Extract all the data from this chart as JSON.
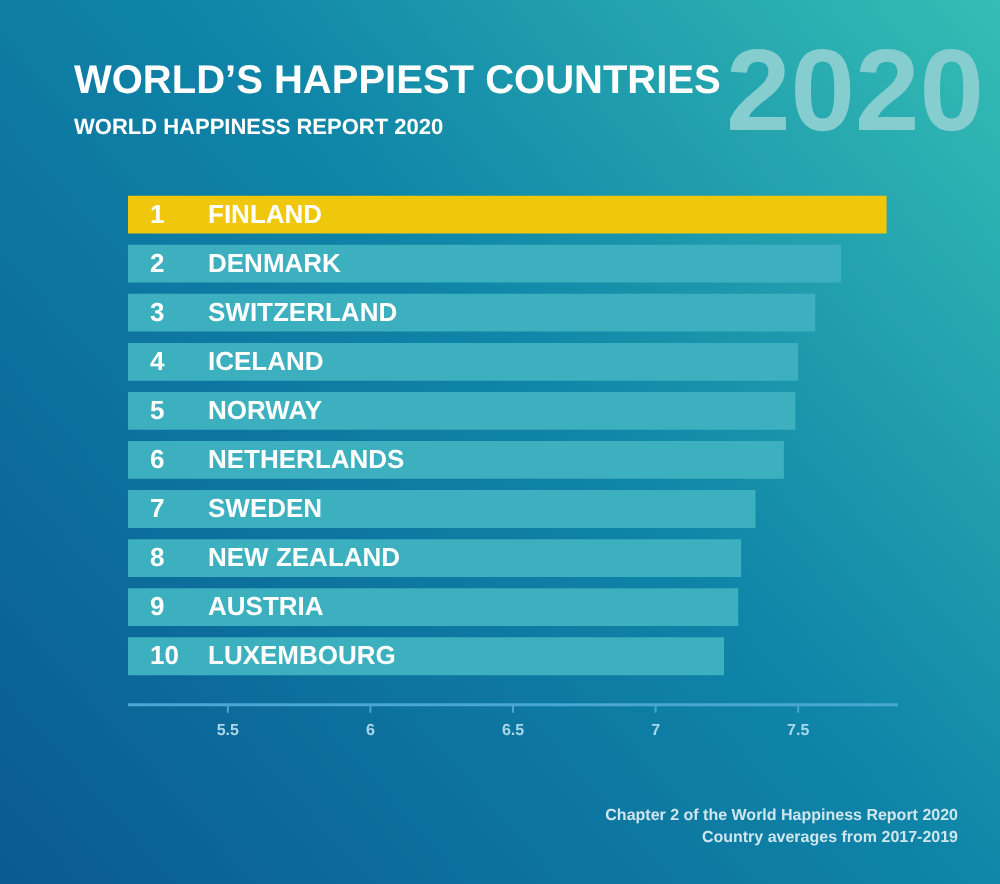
{
  "chart_data": {
    "type": "bar",
    "orientation": "horizontal",
    "title": "WORLD’S HAPPIEST COUNTRIES",
    "subtitle": "WORLD HAPPINESS REPORT 2020",
    "categories": [
      "FINLAND",
      "DENMARK",
      "SWITZERLAND",
      "ICELAND",
      "NORWAY",
      "NETHERLANDS",
      "SWEDEN",
      "NEW ZEALAND",
      "AUSTRIA",
      "LUXEMBOURG"
    ],
    "values": [
      7.81,
      7.65,
      7.56,
      7.5,
      7.49,
      7.45,
      7.35,
      7.3,
      7.29,
      7.24
    ],
    "colors": [
      "#efc80e",
      "#3cb0be",
      "#3cb0be",
      "#3cb0be",
      "#3cb0be",
      "#3cb0be",
      "#3cb0be",
      "#3cb0be",
      "#3cb0be",
      "#3cb0be"
    ],
    "xlim": [
      5.15,
      7.85
    ],
    "xticks": [
      5.5,
      6,
      6.5,
      7,
      7.5
    ],
    "annotations": [
      "2020",
      {
        "text": "1",
        "y": "FINLAND"
      },
      {
        "text": "2",
        "y": "DENMARK"
      },
      {
        "text": "3",
        "y": "SWITZERLAND"
      },
      {
        "text": "4",
        "y": "ICELAND"
      },
      {
        "text": "5",
        "y": "NORWAY"
      },
      {
        "text": "6",
        "y": "NETHERLANDS"
      },
      {
        "text": "7",
        "y": "SWEDEN"
      },
      {
        "text": "8",
        "y": "NEW ZEALAND"
      },
      {
        "text": "9",
        "y": "AUSTRIA"
      },
      {
        "text": "10",
        "y": "LUXEMBOURG"
      },
      "Chapter 2 of the World Happiness Report 2020",
      "Country averages from 2017-2019"
    ]
  }
}
